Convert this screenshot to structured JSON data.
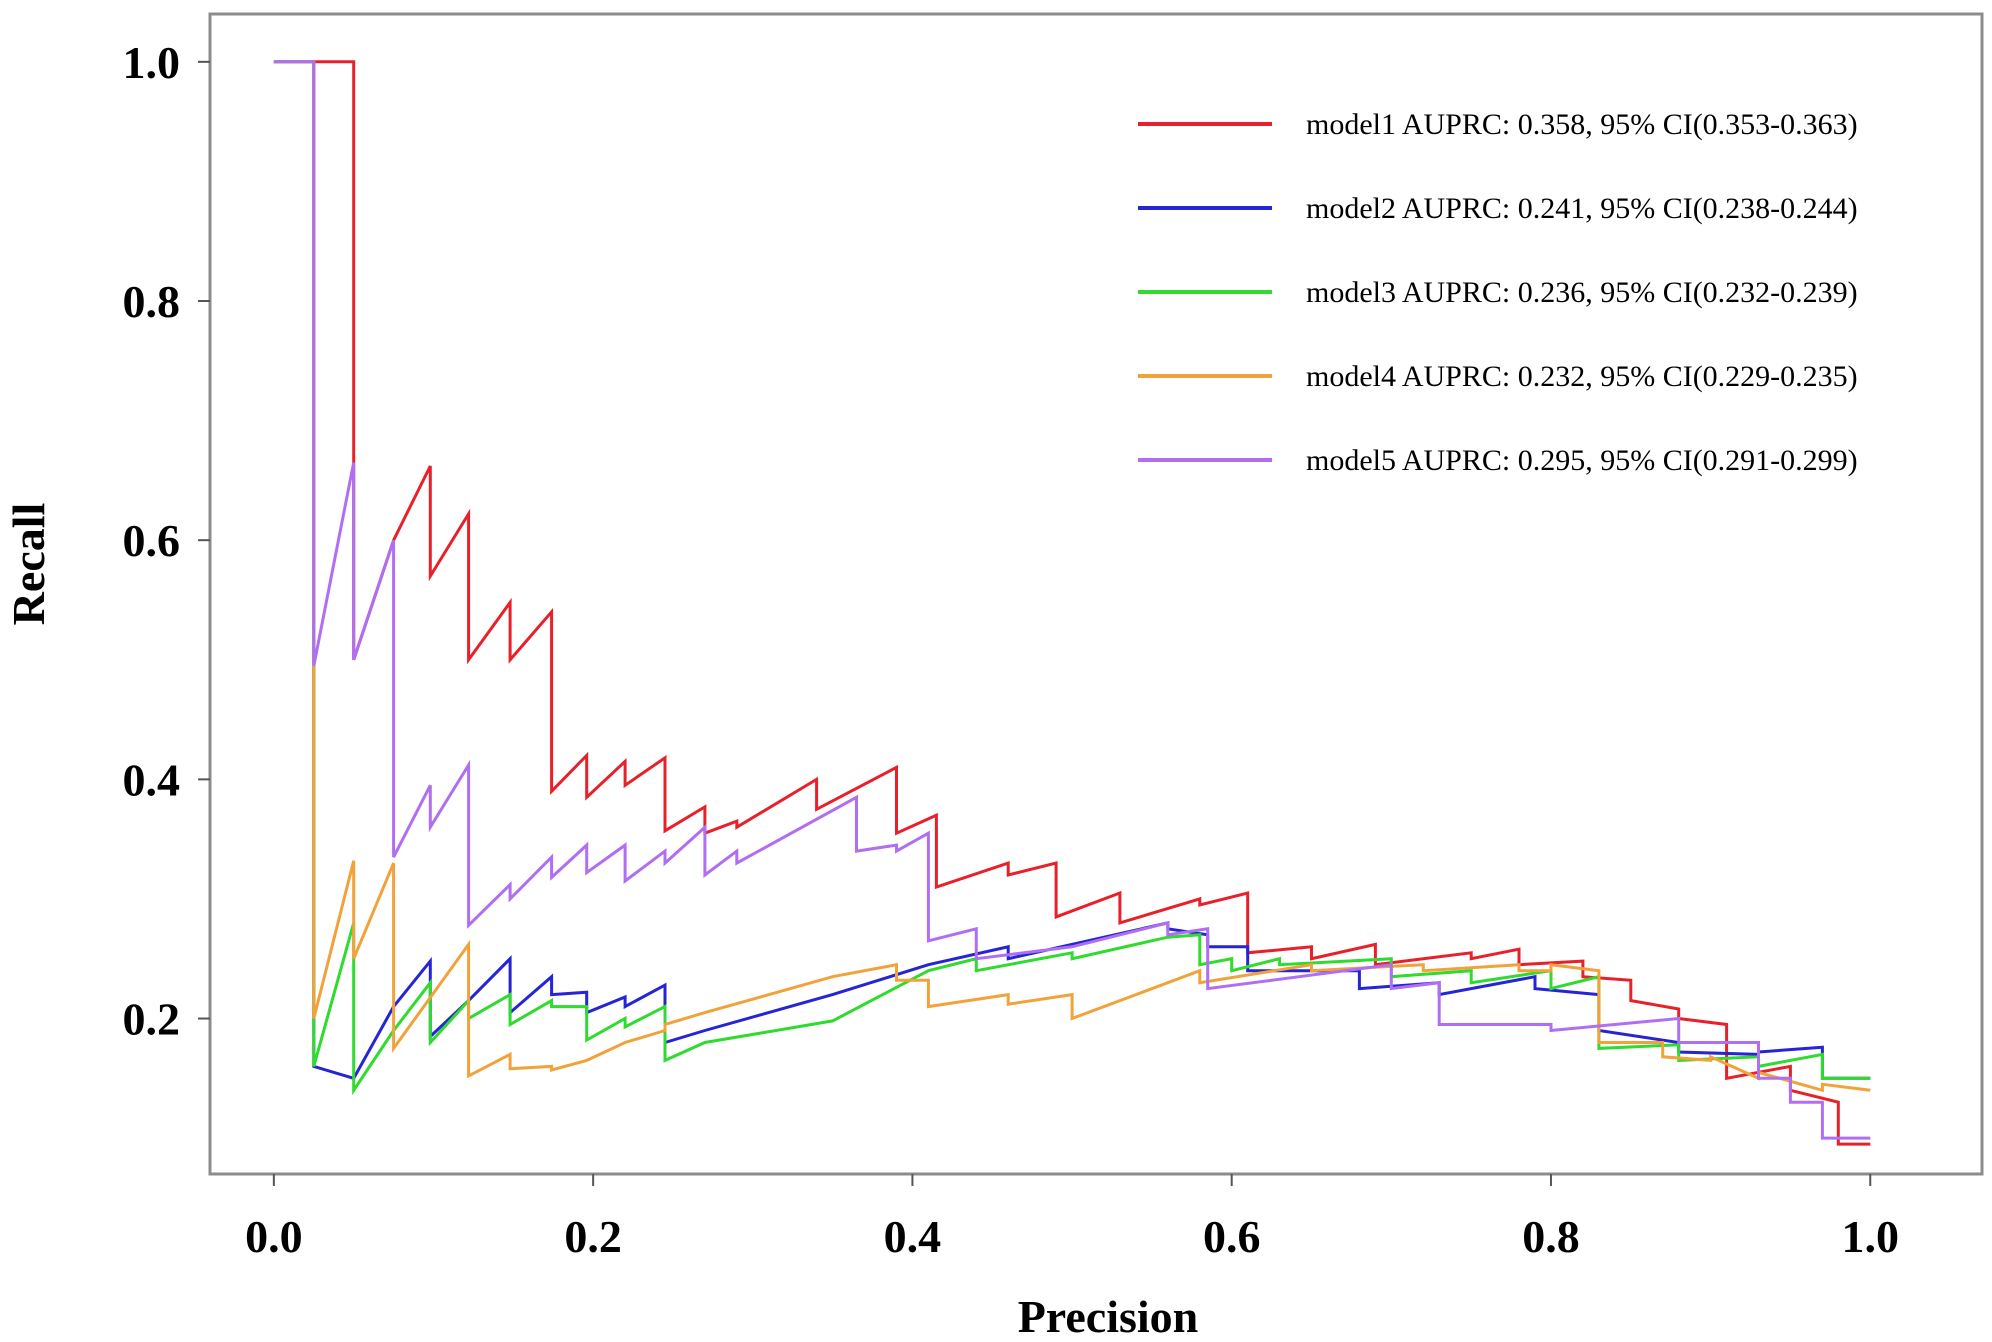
{
  "chart_data": {
    "type": "line",
    "xlabel": "Precision",
    "ylabel": "Recall",
    "xlim": [
      -0.04,
      1.07
    ],
    "ylim": [
      0.07,
      1.04
    ],
    "xticks": [
      0.0,
      0.2,
      0.4,
      0.6,
      0.8,
      1.0
    ],
    "xtick_labels": [
      "0.0",
      "0.2",
      "0.4",
      "0.6",
      "0.8",
      "1.0"
    ],
    "yticks": [
      0.2,
      0.4,
      0.6,
      0.8,
      1.0
    ],
    "ytick_labels": [
      "0.2",
      "0.4",
      "0.6",
      "0.8",
      "1.0"
    ],
    "legend_position": "top-right",
    "grid": false,
    "series": [
      {
        "name": "model1 AUPRC: 0.358, 95% CI(0.353-0.363)",
        "color": "#e8202a",
        "x": [
          0.0,
          0.025,
          0.025,
          0.05,
          0.05,
          0.075,
          0.098,
          0.098,
          0.122,
          0.122,
          0.148,
          0.148,
          0.174,
          0.174,
          0.196,
          0.196,
          0.22,
          0.22,
          0.245,
          0.245,
          0.27,
          0.27,
          0.29,
          0.29,
          0.34,
          0.34,
          0.39,
          0.39,
          0.415,
          0.415,
          0.46,
          0.46,
          0.49,
          0.49,
          0.53,
          0.53,
          0.58,
          0.58,
          0.61,
          0.61,
          0.65,
          0.65,
          0.69,
          0.69,
          0.75,
          0.75,
          0.78,
          0.78,
          0.82,
          0.82,
          0.85,
          0.85,
          0.88,
          0.88,
          0.91,
          0.91,
          0.95,
          0.95,
          0.98,
          0.98,
          1.0
        ],
        "y": [
          1.0,
          1.0,
          1.0,
          1.0,
          0.5,
          0.6,
          0.662,
          0.57,
          0.622,
          0.5,
          0.548,
          0.5,
          0.54,
          0.39,
          0.42,
          0.385,
          0.415,
          0.395,
          0.418,
          0.357,
          0.377,
          0.355,
          0.365,
          0.36,
          0.4,
          0.375,
          0.41,
          0.355,
          0.37,
          0.31,
          0.33,
          0.32,
          0.33,
          0.285,
          0.305,
          0.28,
          0.3,
          0.295,
          0.305,
          0.255,
          0.26,
          0.25,
          0.262,
          0.245,
          0.255,
          0.25,
          0.258,
          0.245,
          0.248,
          0.235,
          0.232,
          0.215,
          0.208,
          0.2,
          0.195,
          0.15,
          0.16,
          0.14,
          0.13,
          0.095,
          0.095
        ]
      },
      {
        "name": "model2 AUPRC: 0.241, 95% CI(0.238-0.244)",
        "color": "#2525d6",
        "x": [
          0.0,
          0.025,
          0.025,
          0.05,
          0.05,
          0.075,
          0.098,
          0.098,
          0.122,
          0.122,
          0.148,
          0.148,
          0.174,
          0.174,
          0.196,
          0.196,
          0.22,
          0.22,
          0.245,
          0.245,
          0.27,
          0.27,
          0.35,
          0.41,
          0.41,
          0.46,
          0.46,
          0.56,
          0.56,
          0.585,
          0.585,
          0.61,
          0.61,
          0.68,
          0.68,
          0.73,
          0.73,
          0.79,
          0.79,
          0.83,
          0.83,
          0.88,
          0.88,
          0.93,
          0.93,
          0.97,
          0.97,
          1.0
        ],
        "y": [
          1.0,
          1.0,
          0.16,
          0.15,
          0.15,
          0.21,
          0.248,
          0.185,
          0.215,
          0.215,
          0.25,
          0.205,
          0.235,
          0.22,
          0.222,
          0.205,
          0.218,
          0.21,
          0.228,
          0.18,
          0.19,
          0.19,
          0.22,
          0.245,
          0.245,
          0.26,
          0.25,
          0.28,
          0.275,
          0.27,
          0.26,
          0.26,
          0.24,
          0.24,
          0.225,
          0.23,
          0.22,
          0.235,
          0.225,
          0.22,
          0.19,
          0.18,
          0.172,
          0.17,
          0.172,
          0.176,
          0.15,
          0.15
        ]
      },
      {
        "name": "model3 AUPRC: 0.236, 95% CI(0.232-0.239)",
        "color": "#2edb2e",
        "x": [
          0.0,
          0.025,
          0.025,
          0.05,
          0.05,
          0.075,
          0.098,
          0.098,
          0.122,
          0.122,
          0.148,
          0.148,
          0.174,
          0.174,
          0.196,
          0.196,
          0.22,
          0.22,
          0.245,
          0.245,
          0.27,
          0.35,
          0.41,
          0.44,
          0.44,
          0.5,
          0.5,
          0.56,
          0.58,
          0.58,
          0.6,
          0.6,
          0.63,
          0.63,
          0.7,
          0.7,
          0.75,
          0.75,
          0.8,
          0.8,
          0.83,
          0.83,
          0.88,
          0.88,
          0.93,
          0.93,
          0.97,
          0.97,
          1.0
        ],
        "y": [
          1.0,
          1.0,
          0.16,
          0.28,
          0.14,
          0.19,
          0.23,
          0.18,
          0.215,
          0.2,
          0.22,
          0.195,
          0.215,
          0.21,
          0.21,
          0.182,
          0.2,
          0.193,
          0.21,
          0.165,
          0.18,
          0.198,
          0.24,
          0.25,
          0.24,
          0.255,
          0.25,
          0.268,
          0.27,
          0.245,
          0.25,
          0.24,
          0.25,
          0.245,
          0.25,
          0.235,
          0.24,
          0.23,
          0.24,
          0.225,
          0.235,
          0.175,
          0.178,
          0.165,
          0.168,
          0.16,
          0.17,
          0.15,
          0.15
        ]
      },
      {
        "name": "model4 AUPRC: 0.232, 95% CI(0.229-0.235)",
        "color": "#f2a23a",
        "x": [
          0.0,
          0.025,
          0.025,
          0.05,
          0.05,
          0.075,
          0.075,
          0.122,
          0.122,
          0.148,
          0.148,
          0.174,
          0.174,
          0.196,
          0.22,
          0.245,
          0.245,
          0.27,
          0.35,
          0.39,
          0.39,
          0.41,
          0.41,
          0.46,
          0.46,
          0.5,
          0.5,
          0.58,
          0.58,
          0.65,
          0.65,
          0.72,
          0.72,
          0.78,
          0.78,
          0.8,
          0.8,
          0.83,
          0.83,
          0.87,
          0.87,
          0.9,
          0.9,
          0.93,
          0.93,
          0.97,
          0.97,
          1.0
        ],
        "y": [
          1.0,
          1.0,
          0.2,
          0.332,
          0.25,
          0.33,
          0.175,
          0.262,
          0.152,
          0.17,
          0.158,
          0.16,
          0.157,
          0.165,
          0.18,
          0.19,
          0.195,
          0.205,
          0.235,
          0.245,
          0.232,
          0.232,
          0.21,
          0.22,
          0.212,
          0.22,
          0.2,
          0.24,
          0.23,
          0.245,
          0.24,
          0.245,
          0.24,
          0.245,
          0.24,
          0.24,
          0.245,
          0.24,
          0.18,
          0.18,
          0.168,
          0.165,
          0.168,
          0.15,
          0.155,
          0.14,
          0.145,
          0.14
        ]
      },
      {
        "name": "model5 AUPRC: 0.295, 95% CI(0.291-0.299)",
        "color": "#b06ef2",
        "x": [
          0.0,
          0.025,
          0.025,
          0.05,
          0.05,
          0.075,
          0.075,
          0.098,
          0.098,
          0.122,
          0.122,
          0.148,
          0.148,
          0.174,
          0.174,
          0.196,
          0.196,
          0.22,
          0.22,
          0.245,
          0.245,
          0.27,
          0.27,
          0.29,
          0.29,
          0.365,
          0.365,
          0.39,
          0.39,
          0.41,
          0.41,
          0.44,
          0.44,
          0.5,
          0.56,
          0.56,
          0.585,
          0.585,
          0.7,
          0.7,
          0.73,
          0.73,
          0.8,
          0.8,
          0.88,
          0.88,
          0.93,
          0.93,
          0.95,
          0.95,
          0.97,
          0.97,
          1.0
        ],
        "y": [
          1.0,
          1.0,
          0.495,
          0.665,
          0.5,
          0.6,
          0.335,
          0.395,
          0.36,
          0.412,
          0.278,
          0.312,
          0.3,
          0.335,
          0.318,
          0.345,
          0.322,
          0.345,
          0.315,
          0.34,
          0.33,
          0.36,
          0.32,
          0.34,
          0.33,
          0.385,
          0.34,
          0.345,
          0.34,
          0.355,
          0.265,
          0.275,
          0.25,
          0.26,
          0.28,
          0.27,
          0.275,
          0.225,
          0.245,
          0.225,
          0.23,
          0.195,
          0.195,
          0.19,
          0.2,
          0.18,
          0.18,
          0.15,
          0.15,
          0.13,
          0.13,
          0.1,
          0.1
        ]
      }
    ]
  }
}
